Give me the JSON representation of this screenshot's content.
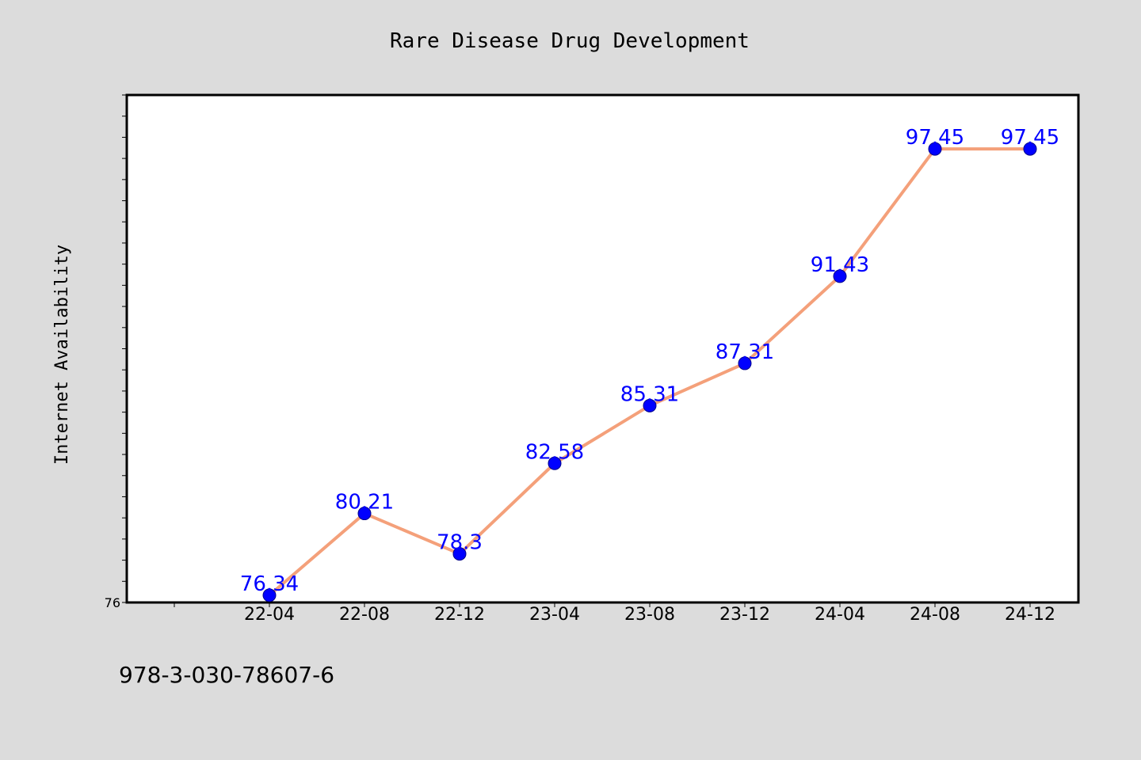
{
  "chart_data": {
    "type": "line",
    "title": "Rare Disease Drug Development",
    "xlabel": "",
    "ylabel": "Internet Availability",
    "categories": [
      "22-04",
      "22-08",
      "22-12",
      "23-04",
      "23-08",
      "23-12",
      "24-04",
      "24-08",
      "24-12"
    ],
    "series": [
      {
        "values": [
          76.34,
          80.21,
          78.3,
          82.58,
          85.31,
          87.31,
          91.43,
          97.45,
          97.45
        ],
        "labels": [
          "76.34",
          "80.21",
          "78.3",
          "82.58",
          "85.31",
          "87.31",
          "91.43",
          "97.45",
          "97.45"
        ]
      }
    ],
    "ylim": [
      76,
      100
    ],
    "y_tick_labels": [
      "76"
    ],
    "grid": false,
    "legend": "none",
    "colors": {
      "line": "#f4a07a",
      "marker": "#0000ff",
      "data_label": "#0000ff",
      "plot_background": "#ffffff",
      "page_background": "#dcdcdc"
    }
  },
  "footer": {
    "isbn": "978-3-030-78607-6"
  }
}
